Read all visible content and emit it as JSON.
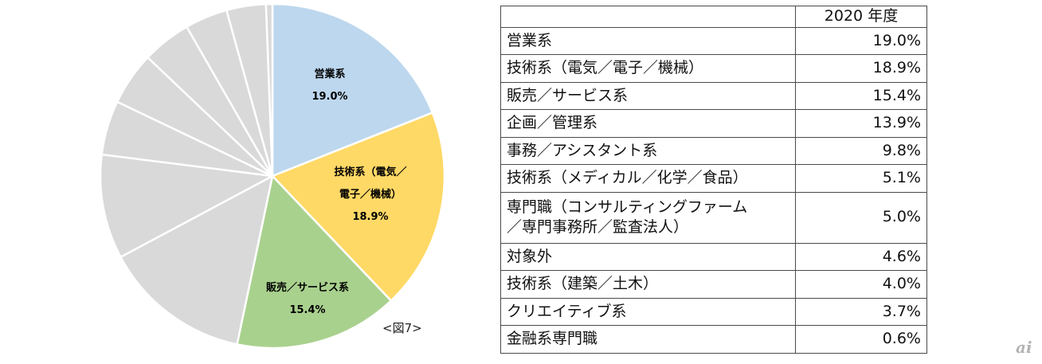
{
  "chart_data": {
    "type": "pie",
    "value_label_suffix": "%",
    "slices": [
      {
        "label": "営業系",
        "chart_label_lines": [
          "営業系"
        ],
        "value": 19.0,
        "color": "#BDD7EE",
        "show_label": true
      },
      {
        "label": "技術系（電気／電子／機械）",
        "chart_label_lines": [
          "技術系（電気／",
          "電子／機械）"
        ],
        "value": 18.9,
        "color": "#FFD966",
        "show_label": true
      },
      {
        "label": "販売／サービス系",
        "chart_label_lines": [
          "販売／サービス系"
        ],
        "value": 15.4,
        "color": "#A9D18E",
        "show_label": true
      },
      {
        "label": "企画／管理系",
        "value": 13.9,
        "color": "#D9D9D9",
        "show_label": false
      },
      {
        "label": "事務／アシスタント系",
        "value": 9.8,
        "color": "#D9D9D9",
        "show_label": false
      },
      {
        "label": "技術系（メディカル／化学／食品）",
        "value": 5.1,
        "color": "#D9D9D9",
        "show_label": false
      },
      {
        "label": "専門職（コンサルティングファーム／専門事務所／監査法人）",
        "value": 5.0,
        "color": "#D9D9D9",
        "show_label": false
      },
      {
        "label": "対象外",
        "value": 4.6,
        "color": "#D9D9D9",
        "show_label": false
      },
      {
        "label": "技術系（建築／土木）",
        "value": 4.0,
        "color": "#D9D9D9",
        "show_label": false
      },
      {
        "label": "クリエイティブ系",
        "value": 3.7,
        "color": "#D9D9D9",
        "show_label": false
      },
      {
        "label": "金融系専門職",
        "value": 0.6,
        "color": "#D9D9D9",
        "show_label": false
      }
    ]
  },
  "figure_caption": "<図7>",
  "table": {
    "header": [
      "",
      "2020 年度"
    ],
    "rows": [
      {
        "name_lines": [
          "営業系"
        ],
        "value": "19.0%"
      },
      {
        "name_lines": [
          "技術系（電気／電子／機械）"
        ],
        "value": "18.9%"
      },
      {
        "name_lines": [
          "販売／サービス系"
        ],
        "value": "15.4%"
      },
      {
        "name_lines": [
          "企画／管理系"
        ],
        "value": "13.9%"
      },
      {
        "name_lines": [
          "事務／アシスタント系"
        ],
        "value": "9.8%"
      },
      {
        "name_lines": [
          "技術系（メディカル／化学／食品）"
        ],
        "value": "5.1%"
      },
      {
        "name_lines": [
          "専門職（コンサルティングファーム",
          "／専門事務所／監査法人）"
        ],
        "value": "5.0%"
      },
      {
        "name_lines": [
          "対象外"
        ],
        "value": "4.6%"
      },
      {
        "name_lines": [
          "技術系（建築／土木）"
        ],
        "value": "4.0%"
      },
      {
        "name_lines": [
          "クリエイティブ系"
        ],
        "value": "3.7%"
      },
      {
        "name_lines": [
          "金融系専門職"
        ],
        "value": "0.6%"
      }
    ]
  },
  "watermark": "ai"
}
